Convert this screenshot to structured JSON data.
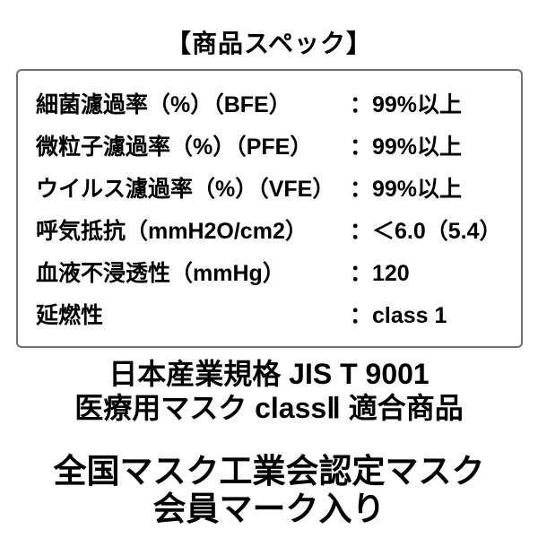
{
  "colors": {
    "background": "#ffffff",
    "text": "#000000",
    "box_border": "#707070"
  },
  "header": {
    "title": "【商品スペック】"
  },
  "spec_table": {
    "rows": [
      {
        "label": "細菌濾過率（%）（BFE）",
        "value": "：99%以上"
      },
      {
        "label": "微粒子濾過率（%）（PFE）",
        "value": "：99%以上"
      },
      {
        "label": "ウイルス濾過率（%）（VFE）",
        "value": "：99%以上"
      },
      {
        "label": "呼気抵抗（mmH2O/cm2）",
        "value": "：＜6.0（5.4）"
      },
      {
        "label": "血液不浸透性（mmHg）",
        "value": "：120"
      },
      {
        "label": "延燃性",
        "value": "：class 1"
      }
    ]
  },
  "certification": {
    "jis_line1": "日本産業規格 JIS T 9001",
    "jis_line2": "医療用マスク classⅡ 適合商品",
    "association_line1": "全国マスク工業会認定マスク",
    "association_line2": "会員マーク入り"
  }
}
